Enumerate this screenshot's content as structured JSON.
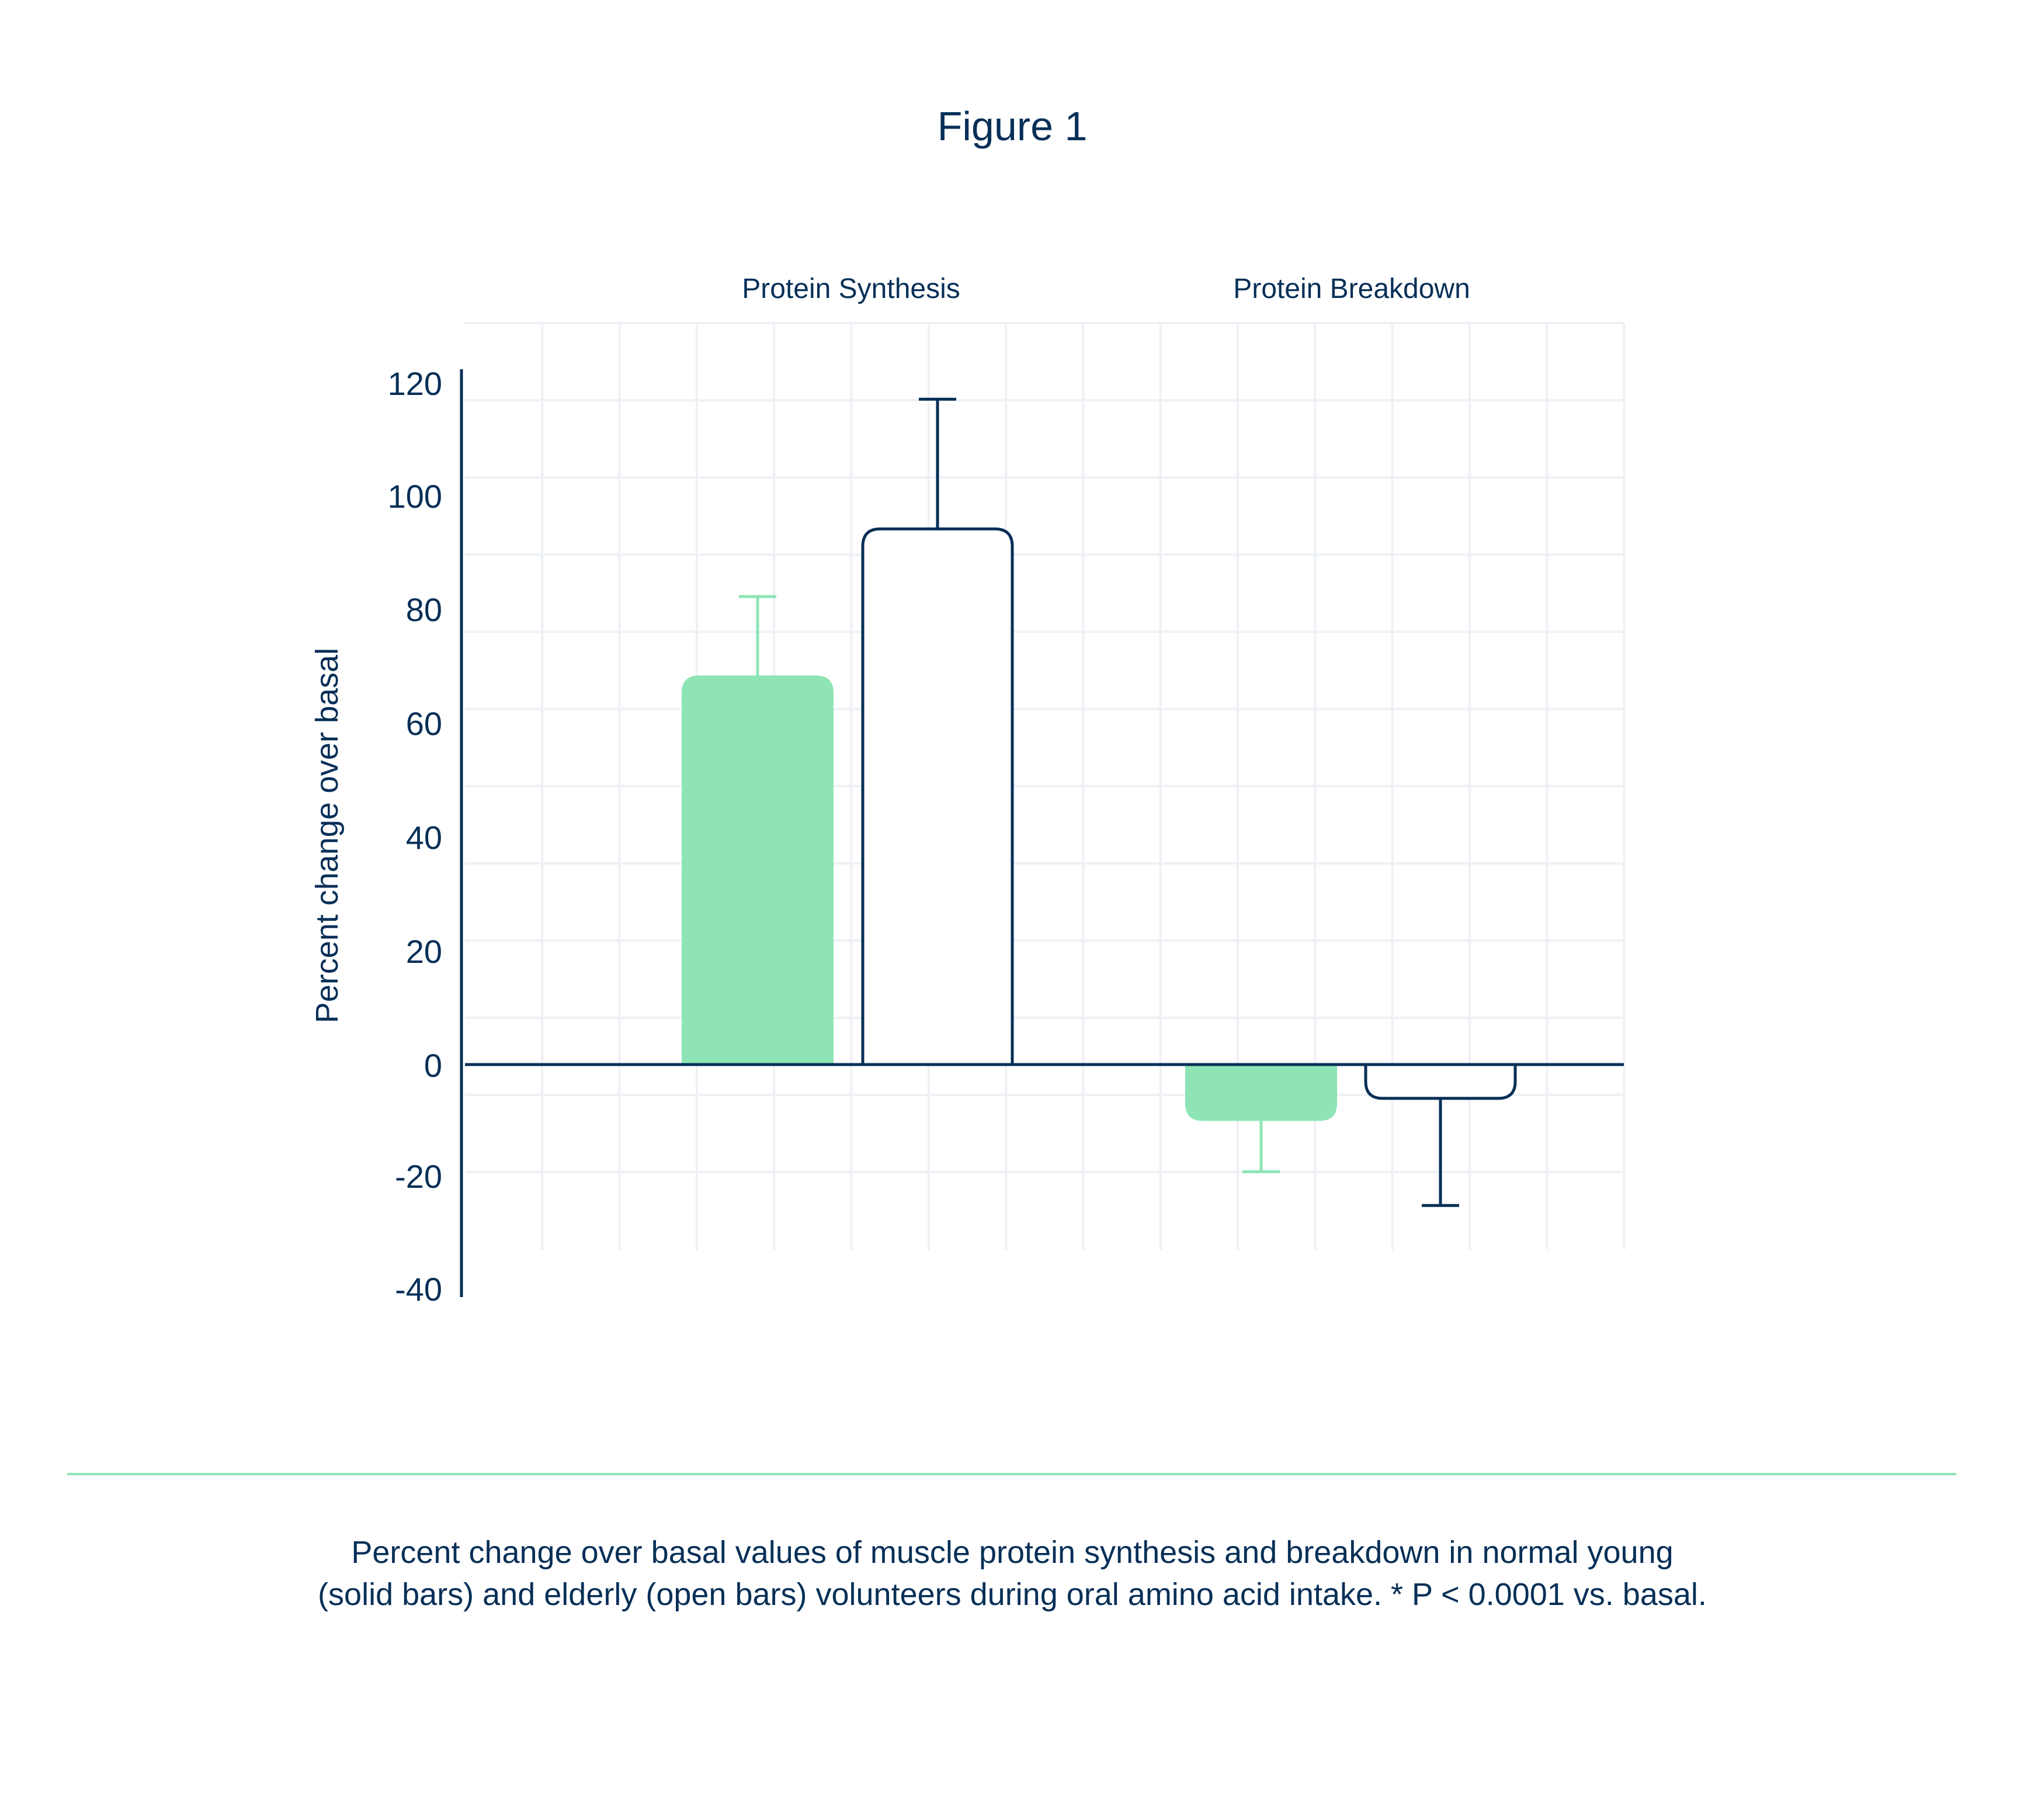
{
  "figure": {
    "title": "Figure 1",
    "caption_line1": "Percent change over basal values of muscle protein synthesis and breakdown in normal young",
    "caption_line2": "(solid bars) and elderly (open bars) volunteers during oral amino acid intake. * P < 0.0001 vs. basal."
  },
  "colors": {
    "navy": "#062f57",
    "green": "#8ee4b5",
    "grid": "#eef1f5",
    "divider": "#8ee4b5"
  },
  "chart_data": {
    "type": "bar",
    "title": "Figure 1",
    "xlabel": "",
    "ylabel": "Percent change over basal",
    "categories": [
      "Protein Synthesis",
      "Protein Breakdown"
    ],
    "series": [
      {
        "name": "Young (solid bars)",
        "style": "solid",
        "values": [
          69,
          -10
        ],
        "error_plus": [
          14,
          9
        ]
      },
      {
        "name": "Elderly (open bars)",
        "style": "open",
        "values": [
          95,
          -6
        ],
        "error_plus": [
          23,
          19
        ]
      }
    ],
    "error_bar_ends": {
      "Young (solid bars)": [
        83,
        -19
      ],
      "Elderly (open bars)": [
        118,
        -25
      ]
    },
    "y_ticks": [
      120,
      100,
      80,
      60,
      40,
      20,
      0,
      -20,
      -40
    ],
    "ylim": [
      -40,
      120
    ],
    "grid": true,
    "legend": "none (described in caption)"
  },
  "axis": {
    "tick_labels": [
      "120",
      "100",
      "80",
      "60",
      "40",
      "20",
      "0",
      "-20",
      "-40"
    ]
  }
}
